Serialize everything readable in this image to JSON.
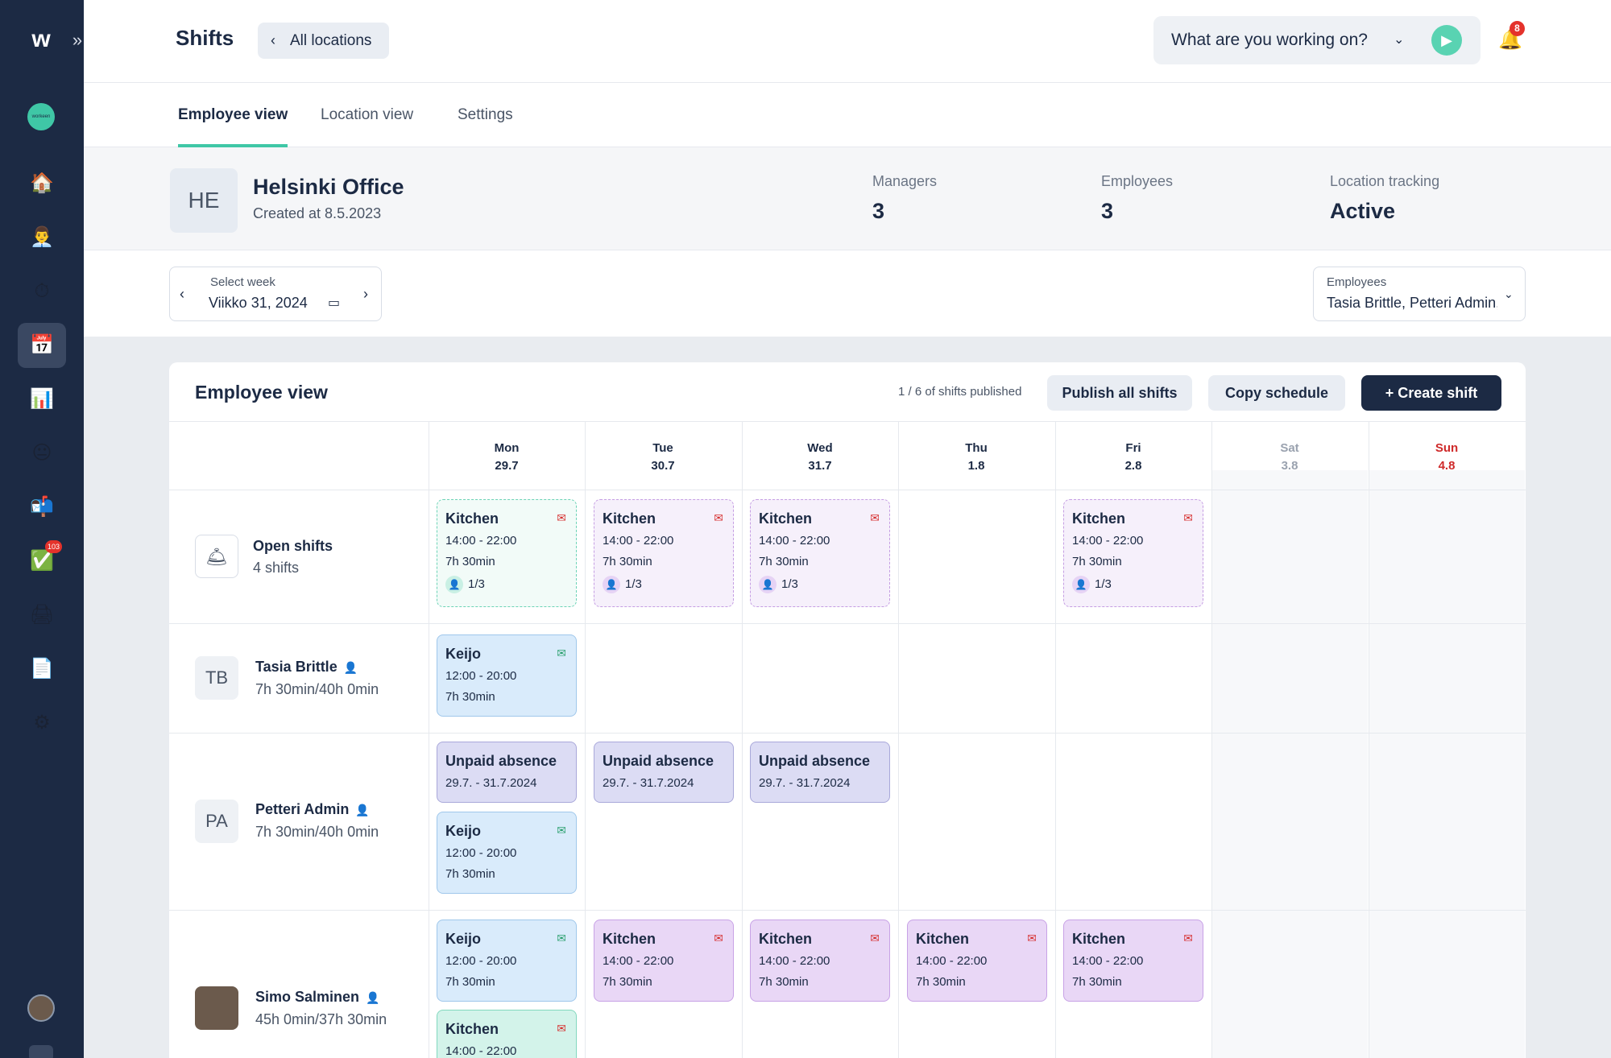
{
  "sidebar": {
    "logo": "w",
    "collapse": "»",
    "brand": "workeen",
    "items": [
      {
        "name": "home",
        "icon": "🏠"
      },
      {
        "name": "people",
        "icon": "👨‍💼"
      },
      {
        "name": "timer",
        "icon": "⏱"
      },
      {
        "name": "calendar",
        "icon": "📅"
      },
      {
        "name": "reports",
        "icon": "📊"
      },
      {
        "name": "smiley",
        "icon": "😐"
      },
      {
        "name": "mailbox",
        "icon": "📬"
      },
      {
        "name": "tasks",
        "icon": "✅",
        "badge": "103"
      },
      {
        "name": "printer",
        "icon": "🖨"
      },
      {
        "name": "document",
        "icon": "📄"
      },
      {
        "name": "settings",
        "icon": "⚙"
      }
    ]
  },
  "header": {
    "title": "Shifts",
    "back_label": "All locations",
    "working_label": "What are you working on?",
    "notifications": "8"
  },
  "tabs": [
    "Employee view",
    "Location view",
    "Settings"
  ],
  "location": {
    "initials": "HE",
    "name": "Helsinki Office",
    "created": "Created at 8.5.2023",
    "stats": [
      {
        "label": "Managers",
        "value": "3"
      },
      {
        "label": "Employees",
        "value": "3"
      },
      {
        "label": "Location tracking",
        "value": "Active"
      }
    ]
  },
  "filters": {
    "week_label": "Select week",
    "week_value": "Viikko 31, 2024",
    "employees_label": "Employees",
    "employees_value": "Tasia Brittle, Petteri Admin, Simo Salminen"
  },
  "schedule": {
    "title": "Employee view",
    "published": "1 / 6 of shifts published",
    "publish_btn": "Publish all shifts",
    "copy_btn": "Copy schedule",
    "create_btn": "Create shift",
    "days": [
      {
        "day": "Mon",
        "date": "29.7"
      },
      {
        "day": "Tue",
        "date": "30.7"
      },
      {
        "day": "Wed",
        "date": "31.7"
      },
      {
        "day": "Thu",
        "date": "1.8"
      },
      {
        "day": "Fri",
        "date": "2.8"
      },
      {
        "day": "Sat",
        "date": "3.8"
      },
      {
        "day": "Sun",
        "date": "4.8"
      }
    ],
    "rows": [
      {
        "name": "Open shifts",
        "sub": "4 shifts",
        "initials": "🛎"
      },
      {
        "name": "Tasia Brittle",
        "sub": "7h 30min/40h 0min",
        "initials": "TB"
      },
      {
        "name": "Petteri Admin",
        "sub": "7h 30min/40h 0min",
        "initials": "PA"
      },
      {
        "name": "Simo Salminen",
        "sub": "45h 0min/37h 30min",
        "initials": ""
      }
    ],
    "open_shift": {
      "title": "Kitchen",
      "time": "14:00 - 22:00",
      "duration": "7h 30min",
      "capacity": "1/3"
    },
    "keijo": {
      "title": "Keijo",
      "time": "12:00 - 20:00",
      "duration": "7h 30min"
    },
    "absence": {
      "title": "Unpaid absence",
      "range": "29.7. - 31.7.2024"
    },
    "kitchen": {
      "title": "Kitchen",
      "time": "14:00 - 22:00",
      "duration": "7h 30min"
    }
  },
  "colors": {
    "sidebar": "#1c2a44",
    "accent": "#3fc7a6",
    "danger": "#e4322b"
  }
}
